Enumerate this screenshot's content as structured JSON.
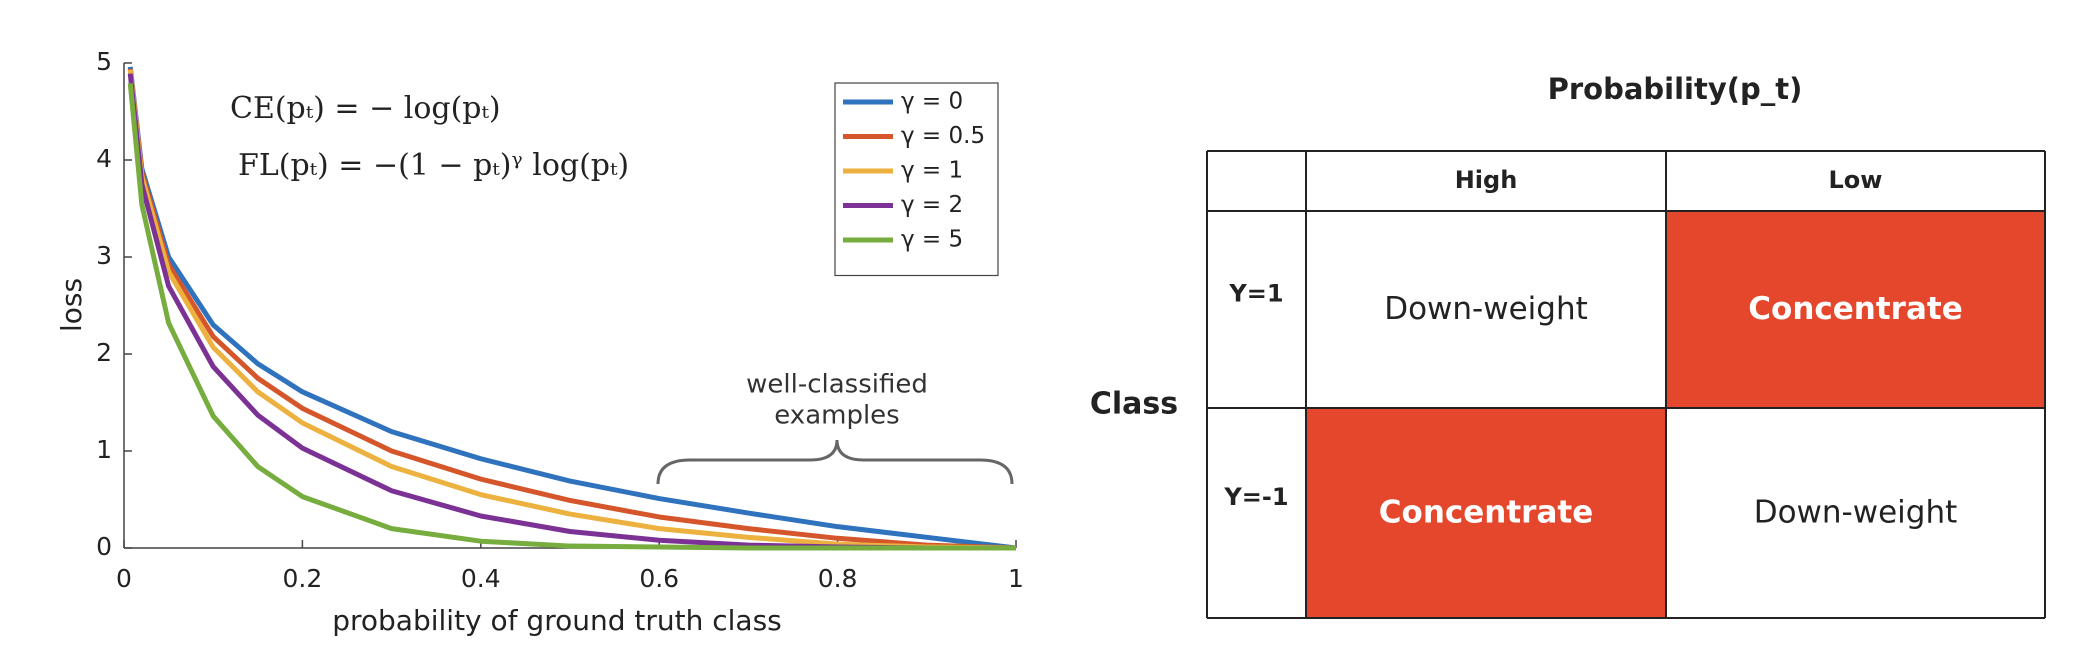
{
  "chart_data": {
    "type": "line",
    "xlabel": "probability of ground truth class",
    "ylabel": "loss",
    "equations": [
      "CE(pₜ) = − log(pₜ)",
      "FL(pₜ) = −(1 − pₜ)ᵞ log(pₜ)"
    ],
    "annotation": [
      "well-classified",
      "examples"
    ],
    "x": [
      0.007,
      0.02,
      0.05,
      0.1,
      0.15,
      0.2,
      0.3,
      0.4,
      0.5,
      0.6,
      0.7,
      0.8,
      0.9,
      1
    ],
    "series": [
      {
        "name": "γ = 0",
        "color": "#2f72bd",
        "values": [
          4.96,
          3.91,
          3.0,
          2.3,
          1.9,
          1.61,
          1.2,
          0.92,
          0.69,
          0.51,
          0.36,
          0.22,
          0.11,
          0
        ]
      },
      {
        "name": "γ = 0.5",
        "color": "#d4562a",
        "values": [
          4.94,
          3.87,
          2.92,
          2.18,
          1.75,
          1.44,
          1.0,
          0.71,
          0.49,
          0.32,
          0.2,
          0.1,
          0.03,
          0
        ]
      },
      {
        "name": "γ = 1",
        "color": "#ecb13f",
        "values": [
          4.93,
          3.83,
          2.85,
          2.07,
          1.61,
          1.29,
          0.84,
          0.55,
          0.35,
          0.2,
          0.11,
          0.04,
          0.01,
          0
        ]
      },
      {
        "name": "γ = 2",
        "color": "#7b3294",
        "values": [
          4.89,
          3.75,
          2.7,
          1.87,
          1.37,
          1.03,
          0.59,
          0.33,
          0.17,
          0.08,
          0.03,
          0.01,
          0,
          0
        ]
      },
      {
        "name": "γ = 5",
        "color": "#77ac3f",
        "values": [
          4.79,
          3.54,
          2.32,
          1.36,
          0.84,
          0.53,
          0.2,
          0.07,
          0.02,
          0.01,
          0,
          0,
          0,
          0
        ]
      }
    ],
    "xlim": [
      0,
      1
    ],
    "ylim": [
      0,
      5
    ],
    "xticks": [
      0,
      0.2,
      0.4,
      0.6,
      0.8,
      1
    ],
    "yticks": [
      0,
      1,
      2,
      3,
      4,
      5
    ],
    "legend": "upper right"
  },
  "table": {
    "title": "Probability(p_t)",
    "row_group": "Class",
    "columns": [
      "High",
      "Low"
    ],
    "rows": [
      {
        "label": "Y=1",
        "cells": [
          {
            "text": "Down-weight",
            "fill": "#ffffff"
          },
          {
            "text": "Concentrate",
            "fill": "#e5472d"
          }
        ]
      },
      {
        "label": "Y=-1",
        "cells": [
          {
            "text": "Concentrate",
            "fill": "#e5472d"
          },
          {
            "text": "Down-weight",
            "fill": "#ffffff"
          }
        ]
      }
    ]
  }
}
